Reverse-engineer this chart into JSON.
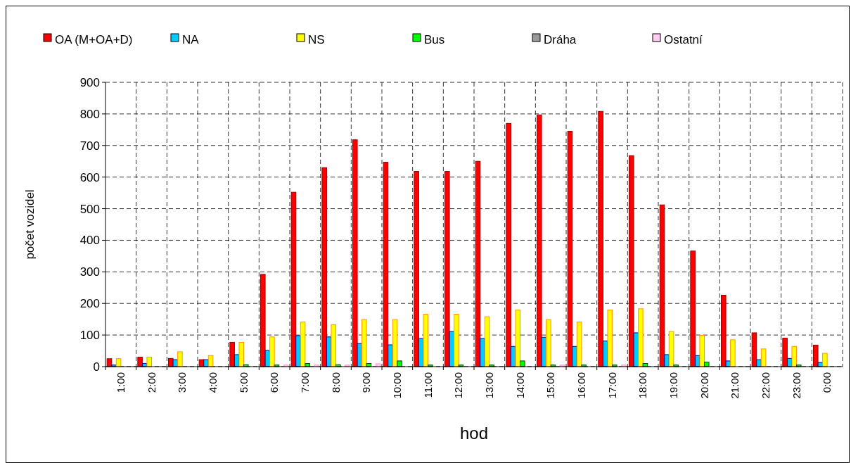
{
  "chart_data": {
    "type": "bar",
    "xlabel": "hod",
    "ylabel": "počet vozidel",
    "categories": [
      "1:00",
      "2:00",
      "3:00",
      "4:00",
      "5:00",
      "6:00",
      "7:00",
      "8:00",
      "9:00",
      "10:00",
      "11:00",
      "12:00",
      "13:00",
      "14:00",
      "15:00",
      "16:00",
      "17:00",
      "18:00",
      "19:00",
      "20:00",
      "21:00",
      "22:00",
      "23:00",
      "0:00"
    ],
    "series": [
      {
        "name": "OA (M+OA+D)",
        "color": "#ff0000",
        "values": [
          25,
          30,
          26,
          22,
          77,
          292,
          552,
          630,
          718,
          647,
          618,
          618,
          650,
          770,
          797,
          745,
          808,
          668,
          512,
          366,
          226,
          107,
          90,
          68
        ]
      },
      {
        "name": "NA",
        "color": "#00ccff",
        "values": [
          5,
          10,
          22,
          22,
          38,
          51,
          98,
          94,
          73,
          69,
          89,
          111,
          89,
          64,
          93,
          64,
          81,
          107,
          38,
          35,
          18,
          22,
          26,
          13
        ]
      },
      {
        "name": "NS",
        "color": "#ffff00",
        "values": [
          25,
          30,
          47,
          35,
          77,
          94,
          141,
          133,
          149,
          149,
          166,
          166,
          158,
          179,
          149,
          141,
          179,
          183,
          111,
          99,
          85,
          56,
          64,
          42
        ]
      },
      {
        "name": "Bus",
        "color": "#00ff00",
        "values": [
          0,
          0,
          0,
          0,
          6,
          5,
          10,
          6,
          10,
          18,
          5,
          5,
          5,
          18,
          5,
          5,
          5,
          10,
          5,
          14,
          0,
          0,
          5,
          0
        ]
      },
      {
        "name": "Dráha",
        "color": "#999999",
        "values": [
          0,
          0,
          0,
          0,
          0,
          0,
          0,
          0,
          0,
          0,
          0,
          0,
          0,
          0,
          0,
          0,
          0,
          0,
          0,
          0,
          0,
          0,
          0,
          0
        ]
      },
      {
        "name": "Ostatní",
        "color": "#ffccee",
        "values": [
          0,
          0,
          0,
          0,
          0,
          5,
          5,
          5,
          9,
          0,
          0,
          0,
          0,
          0,
          5,
          0,
          5,
          0,
          0,
          0,
          0,
          0,
          0,
          0
        ]
      }
    ],
    "ylim": [
      0,
      900
    ],
    "yticks": [
      0,
      100,
      200,
      300,
      400,
      500,
      600,
      700,
      800,
      900
    ],
    "grid": true,
    "legend": "top"
  }
}
